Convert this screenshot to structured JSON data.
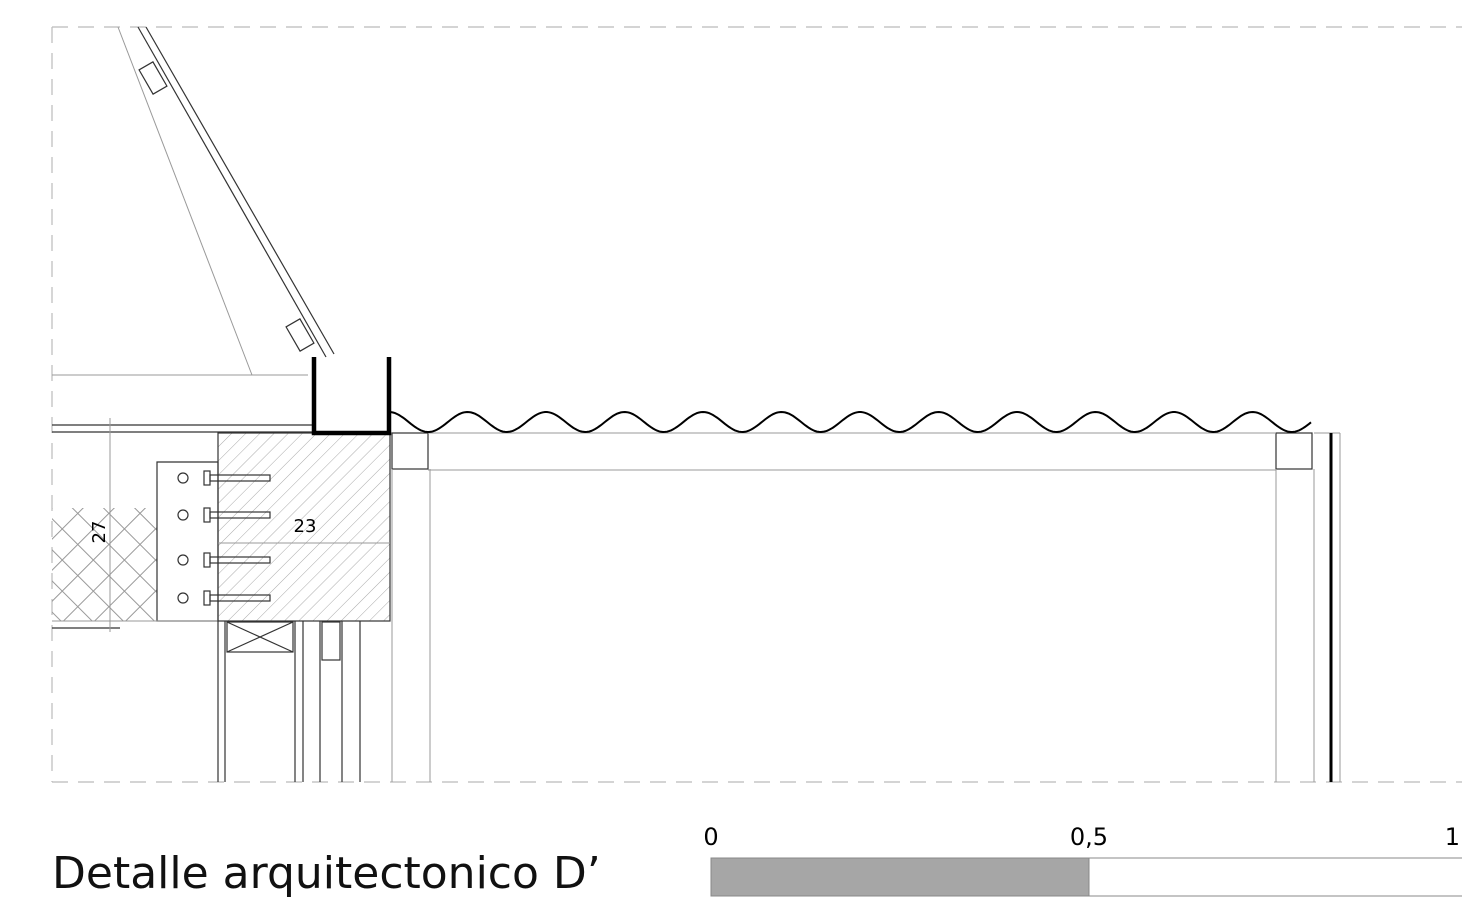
{
  "drawing": {
    "dimensions": [
      "27",
      "23"
    ]
  },
  "footer": {
    "title": "Detalle arquitectonico D’",
    "scale_labels": [
      "0",
      "0,5",
      "1"
    ]
  }
}
